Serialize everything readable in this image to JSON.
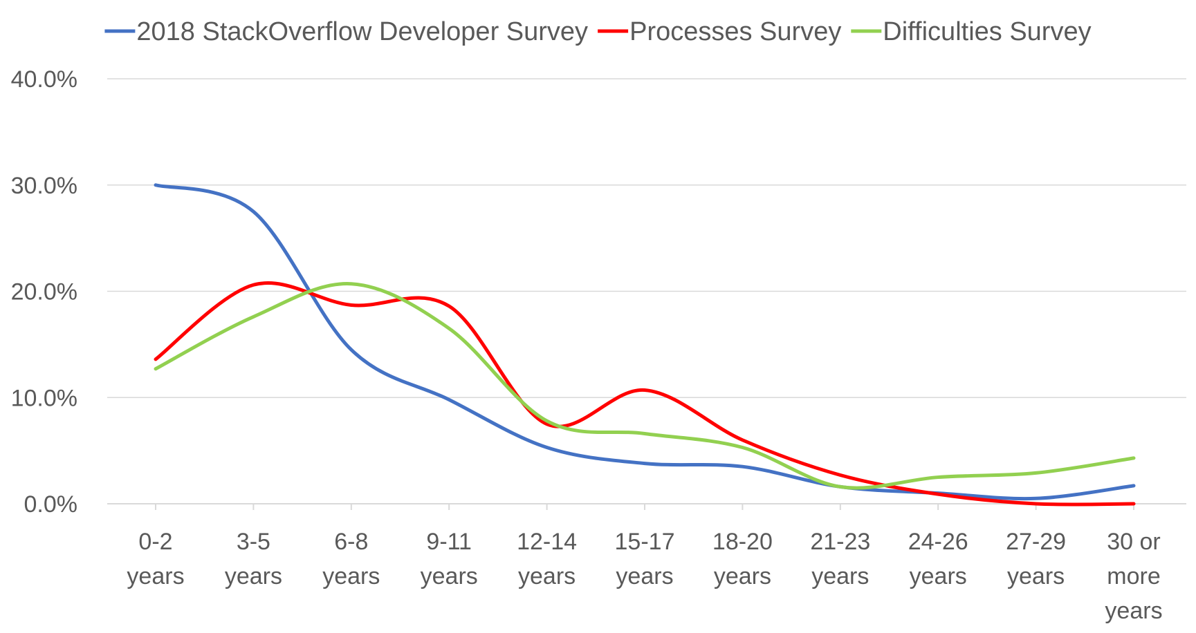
{
  "chart_data": {
    "type": "line",
    "smooth": true,
    "title": "",
    "xlabel": "",
    "ylabel": "",
    "grid": true,
    "legend_position": "top",
    "ylim": [
      0,
      40
    ],
    "y_ticks": [
      "0.0%",
      "10.0%",
      "20.0%",
      "30.0%",
      "40.0%"
    ],
    "y_tick_values": [
      0,
      10,
      20,
      30,
      40
    ],
    "categories": [
      [
        "0-2",
        "years"
      ],
      [
        "3-5",
        "years"
      ],
      [
        "6-8",
        "years"
      ],
      [
        "9-11",
        "years"
      ],
      [
        "12-14",
        "years"
      ],
      [
        "15-17",
        "years"
      ],
      [
        "18-20",
        "years"
      ],
      [
        "21-23",
        "years"
      ],
      [
        "24-26",
        "years"
      ],
      [
        "27-29",
        "years"
      ],
      [
        "30 or",
        "more",
        "years"
      ]
    ],
    "series": [
      {
        "name": "2018 StackOverflow Developer Survey",
        "color": "#4472c4",
        "values": [
          30.0,
          27.5,
          14.5,
          9.8,
          5.3,
          3.8,
          3.5,
          1.6,
          1.0,
          0.5,
          1.7
        ]
      },
      {
        "name": "Processes Survey",
        "color": "#ff0000",
        "values": [
          13.6,
          20.6,
          18.7,
          18.6,
          7.5,
          10.7,
          6.0,
          2.7,
          0.9,
          0.0,
          0.0
        ]
      },
      {
        "name": "Difficulties Survey",
        "color": "#92d050",
        "values": [
          12.7,
          17.6,
          20.7,
          16.5,
          7.8,
          6.6,
          5.3,
          1.6,
          2.5,
          2.9,
          4.3
        ]
      }
    ]
  }
}
